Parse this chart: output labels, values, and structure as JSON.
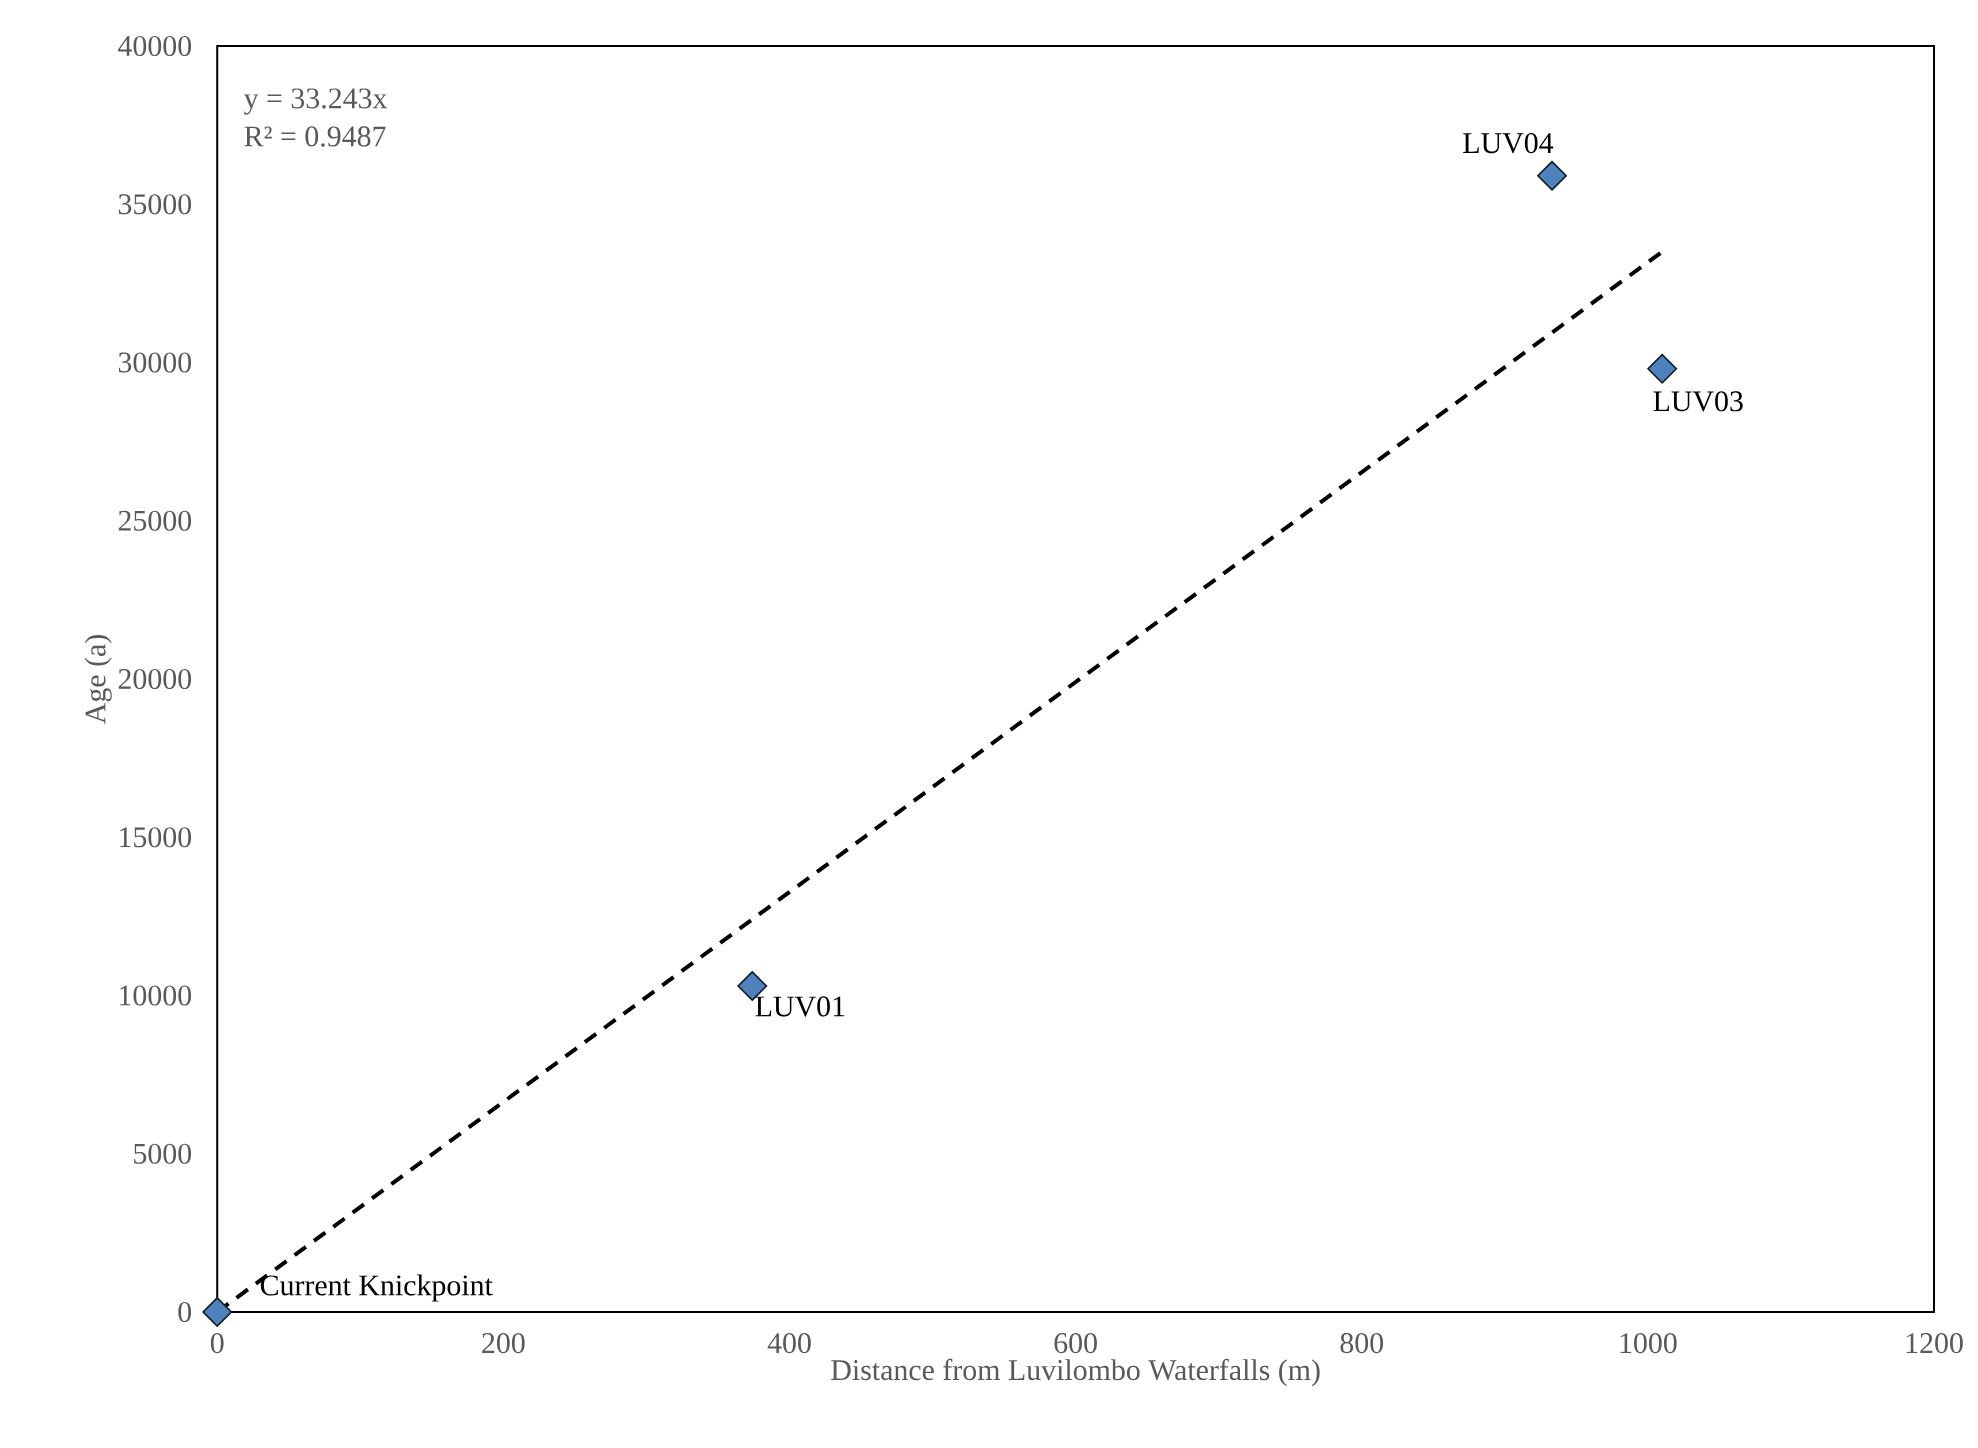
{
  "chart_data": {
    "type": "scatter",
    "xlabel": "Distance from Luvilombo Waterfalls (m)",
    "ylabel": "Age (a)",
    "xlim": [
      0,
      1200
    ],
    "ylim": [
      0,
      40000
    ],
    "xticks": [
      0,
      200,
      400,
      600,
      800,
      1000,
      1200
    ],
    "yticks": [
      0,
      5000,
      10000,
      15000,
      20000,
      25000,
      30000,
      35000,
      40000
    ],
    "marker": "diamond",
    "series": [
      {
        "color": "#4f81bd",
        "x": [
          0,
          374,
          1010,
          933
        ],
        "values": [
          0,
          10300,
          29800,
          35900
        ]
      },
      {
        "type": "line",
        "color": "#000000",
        "line_style": "dashed",
        "marker": "none",
        "x": [
          0,
          1010
        ],
        "values": [
          0,
          33500
        ]
      }
    ],
    "annotations": [
      "y = 33.243x",
      "R² = 0.9487",
      {
        "text": "Current Knickpoint",
        "x": 0,
        "y": 0
      },
      {
        "text": "LUV01",
        "x": 374,
        "y": 10300
      },
      {
        "text": "LUV03",
        "x": 1010,
        "y": 29800
      },
      {
        "text": "LUV04",
        "x": 933,
        "y": 35900
      }
    ]
  }
}
